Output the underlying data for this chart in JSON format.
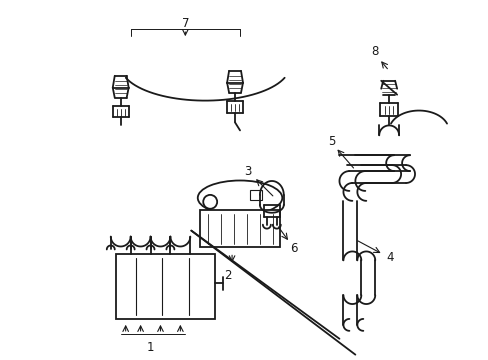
{
  "bg_color": "#ffffff",
  "line_color": "#1a1a1a",
  "lw": 1.3,
  "figsize": [
    4.89,
    3.6
  ],
  "dpi": 100
}
